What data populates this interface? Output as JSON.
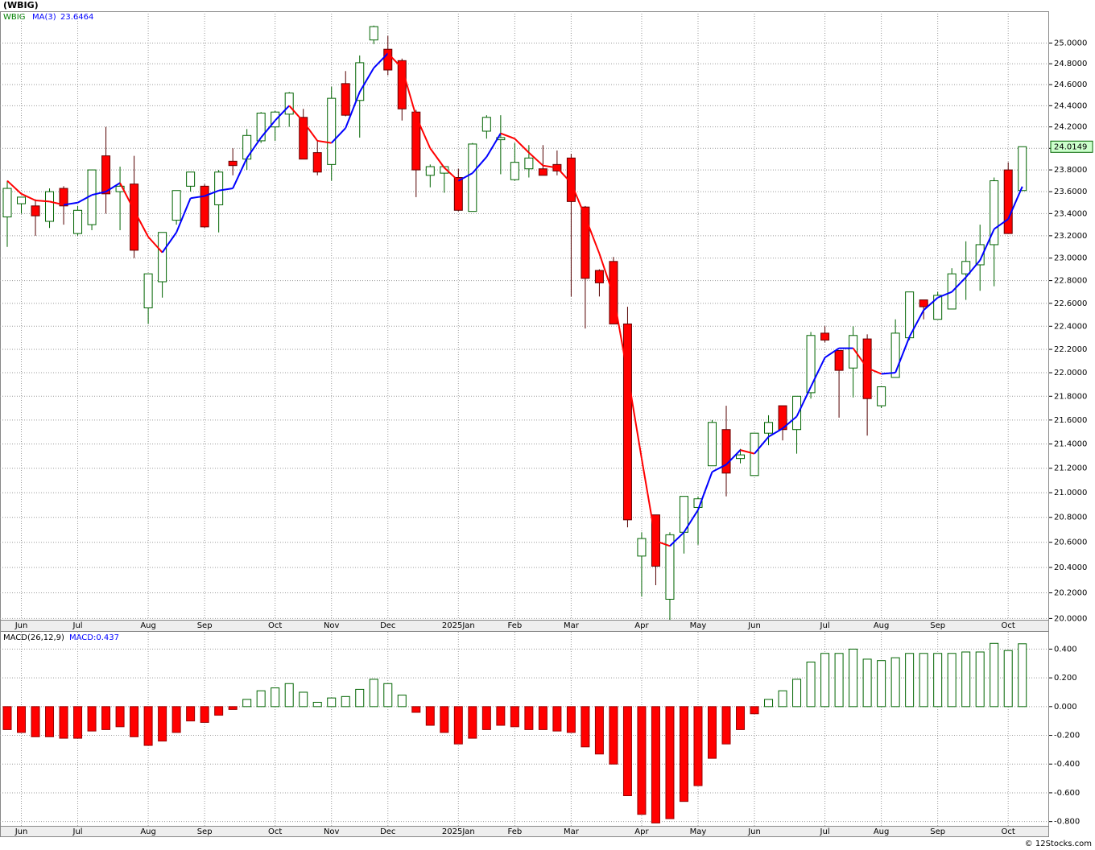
{
  "chart_data": [
    {
      "type": "candlestick",
      "title": "(WBIG)",
      "log_scale": true,
      "grid": true,
      "categories": [
        null,
        "Jun",
        null,
        null,
        null,
        "Jul",
        null,
        null,
        null,
        null,
        "Aug",
        null,
        null,
        null,
        "Sep",
        null,
        null,
        null,
        null,
        "Oct",
        null,
        null,
        null,
        "Nov",
        null,
        null,
        null,
        "Dec",
        null,
        null,
        null,
        null,
        "2025Jan",
        null,
        null,
        null,
        "Feb",
        null,
        null,
        null,
        "Mar",
        null,
        null,
        null,
        null,
        "Apr",
        null,
        null,
        null,
        "May",
        null,
        null,
        null,
        "Jun",
        null,
        null,
        null,
        null,
        "Jul",
        null,
        null,
        null,
        "Aug",
        null,
        null,
        null,
        "Sep",
        null,
        null,
        null,
        null,
        "Oct",
        null
      ],
      "ylim": [
        19.99,
        25.31
      ],
      "yticks": [
        {
          "value": 20,
          "label": "20.0000"
        },
        {
          "value": 20.2,
          "label": "20.2000"
        },
        {
          "value": 20.4,
          "label": "20.4000"
        },
        {
          "value": 20.6,
          "label": "20.6000"
        },
        {
          "value": 20.8,
          "label": "20.8000"
        },
        {
          "value": 21,
          "label": "21.0000"
        },
        {
          "value": 21.2,
          "label": "21.2000"
        },
        {
          "value": 21.4,
          "label": "21.4000"
        },
        {
          "value": 21.6,
          "label": "21.6000"
        },
        {
          "value": 21.8,
          "label": "21.8000"
        },
        {
          "value": 22,
          "label": "22.0000"
        },
        {
          "value": 22.2,
          "label": "22.2000"
        },
        {
          "value": 22.4,
          "label": "22.4000"
        },
        {
          "value": 22.6,
          "label": "22.6000"
        },
        {
          "value": 22.8,
          "label": "22.8000"
        },
        {
          "value": 23,
          "label": "23.0000"
        },
        {
          "value": 23.2,
          "label": "23.2000"
        },
        {
          "value": 23.4,
          "label": "23.4000"
        },
        {
          "value": 23.6,
          "label": "23.6000"
        },
        {
          "value": 23.8,
          "label": "23.8000"
        },
        {
          "value": 24,
          "label": "24.0000"
        },
        {
          "value": 24.2,
          "label": "24.2000"
        },
        {
          "value": 24.4,
          "label": "24.4000"
        },
        {
          "value": 24.6,
          "label": "24.6000"
        },
        {
          "value": 24.8,
          "label": "24.8000"
        },
        {
          "value": 25,
          "label": "25.0000"
        }
      ],
      "series": [
        {
          "name": "WBIG",
          "color": "#006400",
          "up_color": "#006400",
          "down_color": "#ff0000",
          "open": [
            23.37,
            23.49,
            23.47,
            23.33,
            23.63,
            23.22,
            23.3,
            23.93,
            23.6,
            23.67,
            22.56,
            22.79,
            23.34,
            23.65,
            23.65,
            23.48,
            23.88,
            23.9,
            24.07,
            24.2,
            24.32,
            24.29,
            23.96,
            23.85,
            24.61,
            24.45,
            25.03,
            24.94,
            24.83,
            24.34,
            23.75,
            23.77,
            23.73,
            23.42,
            24.16,
            24.08,
            23.71,
            23.81,
            23.81,
            23.85,
            23.91,
            23.46,
            22.89,
            22.97,
            22.42,
            20.49,
            20.82,
            20.15,
            20.68,
            20.88,
            21.22,
            21.52,
            21.28,
            21.14,
            21.49,
            21.72,
            21.52,
            21.83,
            22.34,
            22.19,
            22.04,
            22.29,
            21.72,
            21.96,
            22.3,
            22.63,
            22.46,
            22.55,
            22.86,
            22.94,
            23.12,
            23.8,
            23.61
          ],
          "high": [
            23.7,
            23.55,
            23.53,
            23.63,
            23.65,
            23.47,
            23.8,
            24.2,
            23.83,
            23.93,
            22.86,
            23.23,
            23.61,
            23.78,
            23.67,
            23.8,
            24.0,
            24.18,
            24.34,
            24.35,
            24.53,
            24.37,
            24.07,
            24.58,
            24.73,
            24.88,
            25.17,
            25.07,
            24.85,
            24.36,
            23.85,
            23.83,
            23.81,
            24.05,
            24.31,
            24.31,
            24.05,
            24.03,
            24.03,
            23.98,
            23.95,
            23.47,
            22.9,
            23.01,
            22.57,
            20.68,
            20.82,
            20.68,
            20.97,
            20.97,
            21.6,
            21.72,
            21.36,
            21.49,
            21.64,
            21.72,
            21.8,
            22.35,
            22.4,
            22.19,
            22.4,
            22.33,
            21.88,
            22.46,
            22.7,
            22.63,
            22.7,
            22.91,
            23.15,
            23.3,
            23.73,
            23.87,
            24.0149
          ],
          "low": [
            23.1,
            23.4,
            23.2,
            23.27,
            23.3,
            23.2,
            23.25,
            23.4,
            23.25,
            23.0,
            22.42,
            22.65,
            23.3,
            23.6,
            23.27,
            23.23,
            23.75,
            23.8,
            24.05,
            24.07,
            24.2,
            23.9,
            23.75,
            23.7,
            24.3,
            24.1,
            24.99,
            24.69,
            24.26,
            23.55,
            23.64,
            23.59,
            23.42,
            23.42,
            24.09,
            23.76,
            23.7,
            23.73,
            23.75,
            23.75,
            22.66,
            22.38,
            22.66,
            22.42,
            20.72,
            20.17,
            20.26,
            19.99,
            20.51,
            20.58,
            21.22,
            20.97,
            21.24,
            21.14,
            21.39,
            21.43,
            21.32,
            21.78,
            22.26,
            21.62,
            21.79,
            21.47,
            21.7,
            21.96,
            22.28,
            22.46,
            22.46,
            22.55,
            22.63,
            22.71,
            22.75,
            23.22,
            23.61
          ],
          "close": [
            23.63,
            23.55,
            23.38,
            23.6,
            23.47,
            23.43,
            23.8,
            23.58,
            23.65,
            23.07,
            22.86,
            23.23,
            23.61,
            23.78,
            23.28,
            23.78,
            23.84,
            24.12,
            24.33,
            24.34,
            24.52,
            23.9,
            23.78,
            24.47,
            24.31,
            24.81,
            25.16,
            24.74,
            24.37,
            23.8,
            23.83,
            23.83,
            23.43,
            24.04,
            24.29,
            24.1,
            23.87,
            23.91,
            23.75,
            23.79,
            23.51,
            22.82,
            22.78,
            22.42,
            20.78,
            20.63,
            20.41,
            20.66,
            20.97,
            20.95,
            21.58,
            21.16,
            21.31,
            21.49,
            21.58,
            21.52,
            21.8,
            22.32,
            22.28,
            22.02,
            22.32,
            21.78,
            21.88,
            22.34,
            22.7,
            22.57,
            22.67,
            22.86,
            22.97,
            23.12,
            23.7,
            23.22,
            24.0149
          ]
        },
        {
          "name": "MA(3)",
          "color": "#0000ff",
          "down_color": "#ff0000",
          "values": [
            23.7,
            23.58,
            23.52,
            23.51,
            23.48,
            23.5,
            23.57,
            23.6,
            23.68,
            23.43,
            23.19,
            23.05,
            23.23,
            23.54,
            23.56,
            23.61,
            23.63,
            23.91,
            24.1,
            24.26,
            24.4,
            24.25,
            24.07,
            24.05,
            24.19,
            24.53,
            24.76,
            24.9,
            24.76,
            24.3,
            24.0,
            23.82,
            23.7,
            23.77,
            23.92,
            24.14,
            24.09,
            23.96,
            23.84,
            23.82,
            23.68,
            23.37,
            23.04,
            22.67,
            21.99,
            21.28,
            20.61,
            20.57,
            20.68,
            20.86,
            21.17,
            21.23,
            21.35,
            21.32,
            21.46,
            21.53,
            21.63,
            21.88,
            22.13,
            22.21,
            22.21,
            22.04,
            21.99,
            22.0,
            22.31,
            22.54,
            22.65,
            22.7,
            22.83,
            22.98,
            23.26,
            23.35,
            23.6464
          ]
        }
      ]
    },
    {
      "type": "macd",
      "indicator": "MACD(26,12,9)",
      "macd_label": "MACD:0.437",
      "grid": true,
      "positive_color": "#006400",
      "negative_color": "#ff0000",
      "ylim": [
        -0.83,
        0.52
      ],
      "yticks": [
        {
          "value": 0.4,
          "label": "0.400"
        },
        {
          "value": 0.2,
          "label": "0.200"
        },
        {
          "value": 0,
          "label": "0.000"
        },
        {
          "value": -0.2,
          "label": "-0.200"
        },
        {
          "value": -0.4,
          "label": "-0.400"
        },
        {
          "value": -0.6,
          "label": "-0.600"
        },
        {
          "value": -0.8,
          "label": "-0.800"
        }
      ],
      "values": [
        -0.16,
        -0.18,
        -0.21,
        -0.21,
        -0.22,
        -0.22,
        -0.17,
        -0.16,
        -0.14,
        -0.21,
        -0.27,
        -0.24,
        -0.18,
        -0.1,
        -0.11,
        -0.06,
        -0.02,
        0.05,
        0.11,
        0.13,
        0.16,
        0.1,
        0.03,
        0.06,
        0.07,
        0.12,
        0.19,
        0.16,
        0.08,
        -0.04,
        -0.13,
        -0.18,
        -0.26,
        -0.22,
        -0.16,
        -0.13,
        -0.14,
        -0.16,
        -0.16,
        -0.17,
        -0.18,
        -0.28,
        -0.33,
        -0.4,
        -0.62,
        -0.75,
        -0.81,
        -0.78,
        -0.66,
        -0.55,
        -0.36,
        -0.26,
        -0.16,
        -0.05,
        0.05,
        0.11,
        0.19,
        0.31,
        0.37,
        0.37,
        0.4,
        0.33,
        0.32,
        0.34,
        0.37,
        0.37,
        0.37,
        0.37,
        0.38,
        0.38,
        0.44,
        0.39,
        0.437
      ]
    }
  ],
  "footer": "© 12Stocks.com"
}
